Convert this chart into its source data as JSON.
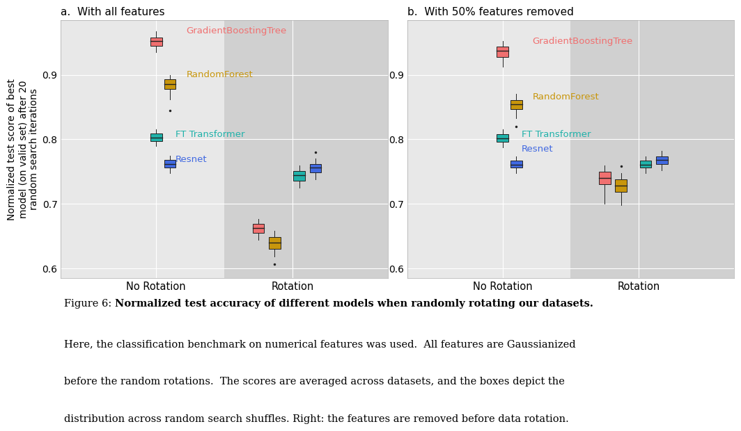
{
  "panel_a_title": "a.  With all features",
  "panel_b_title": "b.  With 50% features removed",
  "ylabel": "Normalized test score of best\nmodel (on valid set) after 20\nrandom search iterations",
  "xtick_labels": [
    "No Rotation",
    "Rotation"
  ],
  "ylim": [
    0.585,
    0.985
  ],
  "yticks": [
    0.6,
    0.7,
    0.8,
    0.9
  ],
  "background_color": "#ffffff",
  "plot_bg_color": "#e8e8e8",
  "rotation_bg_color": "#d0d0d0",
  "models": [
    "GradientBoostingTree",
    "RandomForest",
    "FT Transformer",
    "Resnet"
  ],
  "model_colors": [
    "#f07070",
    "#c8960c",
    "#20b2aa",
    "#4169e1"
  ],
  "model_label_colors": [
    "#f07070",
    "#c8960c",
    "#20b2aa",
    "#4169e1"
  ],
  "panel_a": {
    "no_rotation": {
      "GradientBoostingTree": {
        "q1": 0.945,
        "q2": 0.952,
        "q3": 0.958,
        "whisker_low": 0.935,
        "whisker_high": 0.967,
        "fliers": []
      },
      "RandomForest": {
        "q1": 0.878,
        "q2": 0.886,
        "q3": 0.893,
        "whisker_low": 0.862,
        "whisker_high": 0.9,
        "fliers": [
          0.845
        ]
      },
      "FT Transformer": {
        "q1": 0.797,
        "q2": 0.803,
        "q3": 0.809,
        "whisker_low": 0.79,
        "whisker_high": 0.815,
        "fliers": []
      },
      "Resnet": {
        "q1": 0.756,
        "q2": 0.762,
        "q3": 0.768,
        "whisker_low": 0.748,
        "whisker_high": 0.775,
        "fliers": []
      }
    },
    "rotation": {
      "GradientBoostingTree": {
        "q1": 0.655,
        "q2": 0.662,
        "q3": 0.669,
        "whisker_low": 0.644,
        "whisker_high": 0.676,
        "fliers": []
      },
      "RandomForest": {
        "q1": 0.63,
        "q2": 0.64,
        "q3": 0.648,
        "whisker_low": 0.618,
        "whisker_high": 0.658,
        "fliers": [
          0.607
        ]
      },
      "FT Transformer": {
        "q1": 0.736,
        "q2": 0.744,
        "q3": 0.751,
        "whisker_low": 0.725,
        "whisker_high": 0.76,
        "fliers": []
      },
      "Resnet": {
        "q1": 0.749,
        "q2": 0.756,
        "q3": 0.762,
        "whisker_low": 0.738,
        "whisker_high": 0.77,
        "fliers": [
          0.78
        ]
      }
    }
  },
  "panel_b": {
    "no_rotation": {
      "GradientBoostingTree": {
        "q1": 0.928,
        "q2": 0.937,
        "q3": 0.944,
        "whisker_low": 0.912,
        "whisker_high": 0.952,
        "fliers": []
      },
      "RandomForest": {
        "q1": 0.847,
        "q2": 0.854,
        "q3": 0.861,
        "whisker_low": 0.833,
        "whisker_high": 0.87,
        "fliers": [
          0.82
        ]
      },
      "FT Transformer": {
        "q1": 0.796,
        "q2": 0.802,
        "q3": 0.808,
        "whisker_low": 0.787,
        "whisker_high": 0.815,
        "fliers": []
      },
      "Resnet": {
        "q1": 0.756,
        "q2": 0.761,
        "q3": 0.767,
        "whisker_low": 0.748,
        "whisker_high": 0.774,
        "fliers": []
      }
    },
    "rotation": {
      "GradientBoostingTree": {
        "q1": 0.73,
        "q2": 0.74,
        "q3": 0.75,
        "whisker_low": 0.7,
        "whisker_high": 0.76,
        "fliers": []
      },
      "RandomForest": {
        "q1": 0.718,
        "q2": 0.728,
        "q3": 0.738,
        "whisker_low": 0.698,
        "whisker_high": 0.748,
        "fliers": [
          0.758
        ]
      },
      "FT Transformer": {
        "q1": 0.756,
        "q2": 0.761,
        "q3": 0.767,
        "whisker_low": 0.748,
        "whisker_high": 0.774,
        "fliers": []
      },
      "Resnet": {
        "q1": 0.762,
        "q2": 0.768,
        "q3": 0.774,
        "whisker_low": 0.752,
        "whisker_high": 0.782,
        "fliers": []
      }
    }
  },
  "caption_line1_normal": "Figure 6: ",
  "caption_line1_bold": "Normalized test accuracy of different models when randomly rotating our datasets.",
  "caption_line2": "Here, the classification benchmark on numerical features was used.  All features are Gaussianized",
  "caption_line3": "before the random rotations.  The scores are averaged across datasets, and the boxes depict the",
  "caption_line4": "distribution across random search shuffles. Right: the features are removed before data rotation."
}
